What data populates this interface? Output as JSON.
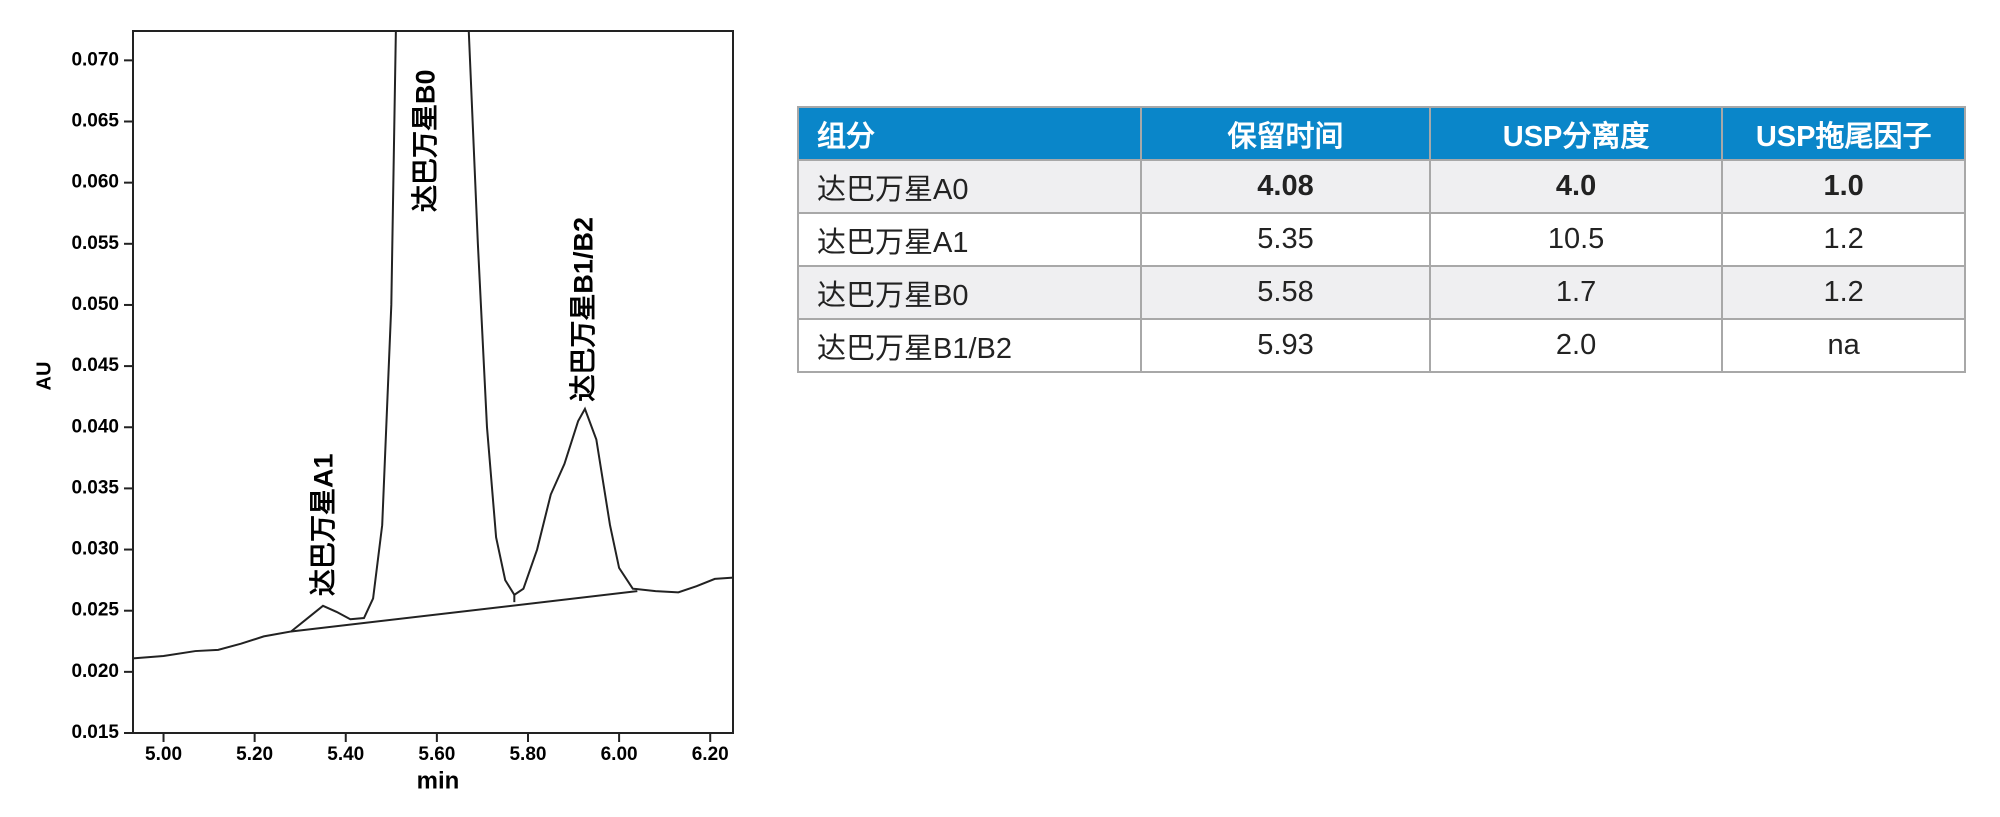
{
  "chart_data": {
    "type": "line",
    "ylabel": "AU",
    "xlabel": "min",
    "xlim": [
      4.933,
      6.25
    ],
    "ylim": [
      0.015,
      0.0724
    ],
    "xticks": [
      {
        "value": 5,
        "label": "5.00"
      },
      {
        "value": 5.2,
        "label": "5.20"
      },
      {
        "value": 5.4,
        "label": "5.40"
      },
      {
        "value": 5.6,
        "label": "5.60"
      },
      {
        "value": 5.8,
        "label": "5.80"
      },
      {
        "value": 6,
        "label": "6.00"
      },
      {
        "value": 6.2,
        "label": "6.20"
      }
    ],
    "yticks": [
      0.015,
      {
        "value": 0.02,
        "label": "0.020"
      },
      0.025,
      {
        "value": 0.03,
        "label": "0.030"
      },
      0.035,
      {
        "value": 0.04,
        "label": "0.040"
      },
      0.045,
      {
        "value": 0.05,
        "label": "0.050"
      },
      0.055,
      {
        "value": 0.06,
        "label": "0.060"
      },
      0.065,
      {
        "value": 0.07,
        "label": "0.070"
      }
    ],
    "color": "#222222",
    "x": [
      4.933,
      5.0,
      5.07,
      5.12,
      5.17,
      5.22,
      5.28,
      5.32,
      5.35,
      5.38,
      5.41,
      5.44,
      5.46,
      5.48,
      5.5,
      5.51,
      5.59,
      5.67,
      5.69,
      5.71,
      5.73,
      5.75,
      5.77,
      5.79,
      5.82,
      5.85,
      5.88,
      5.91,
      5.925,
      5.95,
      5.98,
      6.0,
      6.03,
      6.08,
      6.13,
      6.17,
      6.21,
      6.25
    ],
    "values": [
      0.0211,
      0.0213,
      0.0217,
      0.0218,
      0.0223,
      0.0229,
      0.0233,
      0.0245,
      0.0254,
      0.0249,
      0.0243,
      0.0244,
      0.026,
      0.032,
      0.05,
      0.0724,
      null,
      0.0724,
      0.055,
      0.04,
      0.031,
      0.0275,
      0.0263,
      0.0268,
      0.03,
      0.0345,
      0.037,
      0.0405,
      0.0415,
      0.039,
      0.032,
      0.0285,
      0.0268,
      0.0266,
      0.0265,
      0.027,
      0.0276,
      0.0277
    ],
    "baseline": {
      "x": [
        5.28,
        6.04
      ],
      "values": [
        0.0233,
        0.0266
      ]
    },
    "drop_line": {
      "x": 5.77,
      "values": [
        0.0263,
        0.0257
      ]
    },
    "annotations": [
      {
        "text": "达巴万星A1",
        "x": 5.355,
        "y": 0.0262
      },
      {
        "text": "达巴万星B0",
        "x": 5.579,
        "y": 0.0576
      },
      {
        "text": "达巴万星B1/B2",
        "x": 5.926,
        "y": 0.0421
      }
    ]
  },
  "table": {
    "header": [
      "组分",
      "保留时间",
      "USP分离度",
      "USP拖尾因子"
    ],
    "rows": [
      [
        "达巴万星A0",
        "4.08",
        "4.0",
        "1.0"
      ],
      [
        "达巴万星A1",
        "5.35",
        "10.5",
        "1.2"
      ],
      [
        "达巴万星B0",
        "5.58",
        "1.7",
        "1.2"
      ],
      [
        "达巴万星B1/B2",
        "5.93",
        "2.0",
        "na"
      ]
    ]
  }
}
